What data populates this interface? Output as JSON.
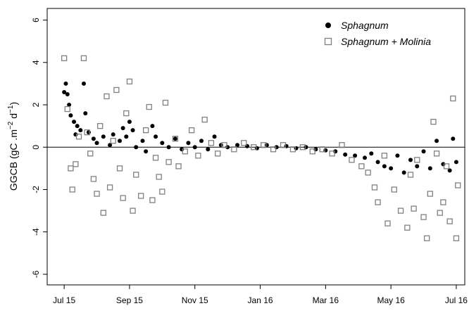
{
  "chart_data": {
    "type": "scatter",
    "y_label": [
      "GGCB (gC .m",
      "−2",
      " d",
      "−1",
      ")"
    ],
    "xlim": [
      -0.52,
      12.26
    ],
    "ylim": [
      -6.5,
      6.55
    ],
    "xticks": [
      {
        "value": 0,
        "label": "Jul 15"
      },
      {
        "value": 2,
        "label": "Sep 15"
      },
      {
        "value": 4,
        "label": "Nov 15"
      },
      {
        "value": 6,
        "label": "Jan 16"
      },
      {
        "value": 8,
        "label": "Mar 16"
      },
      {
        "value": 10,
        "label": "May 16"
      },
      {
        "value": 12,
        "label": "Jul 16"
      }
    ],
    "yticks": [
      -6,
      -4,
      -2,
      0,
      2,
      4,
      6
    ],
    "legend": "top-right",
    "series": [
      {
        "name": "Sphagnum",
        "color": "#000000",
        "marker": "circle",
        "x": [
          0.0,
          0.05,
          0.1,
          0.15,
          0.2,
          0.3,
          0.35,
          0.4,
          0.5,
          0.6,
          0.65,
          0.75,
          0.9,
          1.0,
          1.2,
          1.4,
          1.5,
          1.7,
          1.8,
          1.9,
          2.0,
          2.1,
          2.2,
          2.4,
          2.5,
          2.7,
          2.8,
          3.0,
          3.2,
          3.4,
          3.6,
          3.8,
          4.0,
          4.2,
          4.4,
          4.6,
          4.8,
          5.0,
          5.3,
          5.6,
          5.9,
          6.2,
          6.5,
          6.8,
          7.1,
          7.4,
          7.7,
          8.0,
          8.3,
          8.6,
          8.9,
          9.2,
          9.4,
          9.6,
          9.8,
          10.0,
          10.2,
          10.4,
          10.6,
          10.8,
          11.0,
          11.2,
          11.4,
          11.6,
          11.8,
          11.9,
          12.0
        ],
        "values": [
          2.6,
          3.0,
          2.5,
          2.0,
          1.5,
          1.2,
          0.6,
          1.0,
          0.8,
          3.0,
          1.6,
          0.7,
          0.4,
          0.2,
          0.5,
          0.1,
          0.6,
          0.3,
          0.9,
          0.5,
          1.2,
          0.8,
          0.0,
          0.3,
          -0.2,
          1.0,
          0.5,
          0.2,
          0.0,
          0.4,
          -0.1,
          0.2,
          0.0,
          0.3,
          -0.1,
          0.5,
          0.1,
          0.0,
          0.1,
          0.05,
          -0.05,
          0.1,
          0.0,
          0.05,
          -0.05,
          0.0,
          -0.1,
          -0.15,
          -0.2,
          -0.35,
          -0.4,
          -0.5,
          -0.3,
          -0.7,
          -0.9,
          -1.0,
          -0.4,
          -1.2,
          -0.6,
          -0.9,
          -0.2,
          -1.0,
          0.3,
          -0.8,
          -1.1,
          0.4,
          -0.7
        ]
      },
      {
        "name": "Sphagnum + Molinia",
        "color": "#808080",
        "marker": "square",
        "x": [
          0.0,
          0.1,
          0.2,
          0.25,
          0.35,
          0.45,
          0.6,
          0.7,
          0.8,
          0.9,
          1.0,
          1.1,
          1.2,
          1.3,
          1.4,
          1.5,
          1.6,
          1.7,
          1.8,
          1.9,
          2.0,
          2.1,
          2.2,
          2.35,
          2.5,
          2.6,
          2.7,
          2.8,
          2.9,
          3.0,
          3.1,
          3.2,
          3.4,
          3.5,
          3.7,
          3.9,
          4.1,
          4.3,
          4.5,
          4.7,
          4.9,
          5.2,
          5.5,
          5.8,
          6.1,
          6.4,
          6.7,
          7.0,
          7.3,
          7.6,
          7.9,
          8.2,
          8.5,
          8.8,
          9.1,
          9.3,
          9.5,
          9.6,
          9.8,
          9.9,
          10.1,
          10.3,
          10.5,
          10.6,
          10.7,
          10.8,
          11.0,
          11.1,
          11.2,
          11.3,
          11.4,
          11.5,
          11.6,
          11.7,
          11.8,
          11.9,
          12.0,
          12.05
        ],
        "values": [
          4.2,
          1.8,
          -1.0,
          -2.0,
          -0.8,
          0.5,
          4.2,
          0.7,
          -0.3,
          -1.5,
          -2.2,
          1.0,
          -3.1,
          2.4,
          -1.9,
          0.3,
          2.7,
          -1.0,
          -2.4,
          1.6,
          3.1,
          -3.0,
          -1.3,
          -2.3,
          0.8,
          1.9,
          -2.5,
          -0.5,
          -1.4,
          -2.1,
          2.1,
          -0.7,
          0.4,
          -0.9,
          -0.2,
          0.8,
          -0.4,
          1.3,
          0.2,
          -0.3,
          0.1,
          -0.1,
          0.2,
          0.0,
          0.1,
          -0.1,
          0.1,
          -0.1,
          0.0,
          -0.2,
          -0.1,
          -0.3,
          0.1,
          -0.6,
          -0.9,
          -1.2,
          -1.9,
          -2.6,
          -0.4,
          -3.6,
          -2.0,
          -3.0,
          -3.8,
          -1.3,
          -2.9,
          -0.6,
          -3.3,
          -4.3,
          -2.2,
          1.2,
          -0.3,
          -3.1,
          -2.6,
          -0.9,
          -3.5,
          2.3,
          -4.3,
          -1.8
        ]
      }
    ]
  }
}
